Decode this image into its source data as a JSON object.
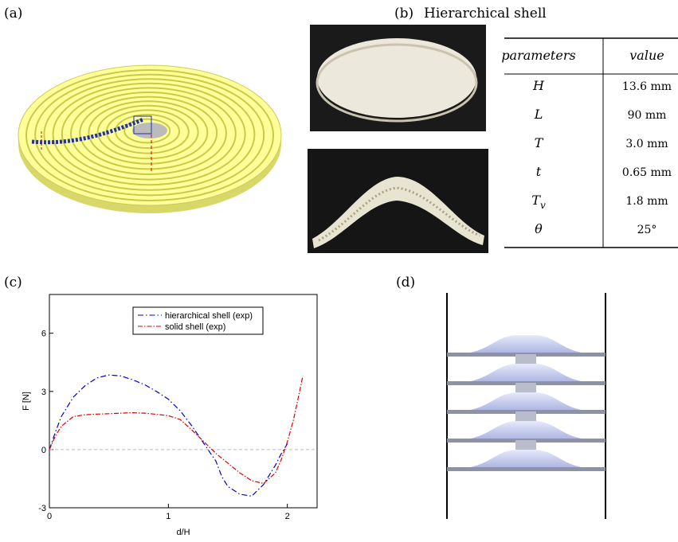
{
  "panels": {
    "a": "(a)",
    "b": "(b)",
    "b_title": "Hierarchical shell",
    "c": "(c)",
    "d": "(d)"
  },
  "table": {
    "header": [
      "parameters",
      "value"
    ],
    "rows": [
      {
        "param": "H",
        "value": "13.6 mm"
      },
      {
        "param": "L",
        "value": "90 mm"
      },
      {
        "param": "T",
        "value": "3.0 mm"
      },
      {
        "param": "t",
        "value": "0.65 mm"
      },
      {
        "param": "T",
        "sub": "v",
        "value": "1.8 mm"
      },
      {
        "param": "θ",
        "value": "25°"
      }
    ]
  },
  "chart_data": {
    "type": "line",
    "x_label": "d/H",
    "y_label": "F [N]",
    "xlim": [
      0,
      2.25
    ],
    "ylim": [
      -3,
      8
    ],
    "xticks": [
      0,
      1,
      2
    ],
    "yticks": [
      -3,
      0,
      3,
      6
    ],
    "legend": "top-center",
    "x": [
      0,
      0.05,
      0.1,
      0.2,
      0.3,
      0.4,
      0.5,
      0.6,
      0.7,
      0.8,
      0.9,
      1.0,
      1.1,
      1.2,
      1.3,
      1.4,
      1.45,
      1.5,
      1.6,
      1.7,
      1.8,
      1.9,
      1.95,
      2.0,
      2.05,
      2.1,
      2.13
    ],
    "series": [
      {
        "name": "hierarchical shell (exp)",
        "color": "#0000cc",
        "values": [
          0,
          0.9,
          1.7,
          2.7,
          3.3,
          3.7,
          3.85,
          3.8,
          3.6,
          3.35,
          3.0,
          2.6,
          2.0,
          1.2,
          0.3,
          -0.6,
          -1.4,
          -1.9,
          -2.3,
          -2.4,
          -1.8,
          -0.8,
          -0.2,
          0.3,
          null,
          null,
          null
        ]
      },
      {
        "name": "solid shell (exp)",
        "color": "#dd0000",
        "values": [
          0,
          0.7,
          1.2,
          1.7,
          1.8,
          1.83,
          1.85,
          1.88,
          1.9,
          1.88,
          1.82,
          1.75,
          1.55,
          1.0,
          0.4,
          -0.2,
          -0.45,
          -0.7,
          -1.2,
          -1.6,
          -1.75,
          -1.2,
          -0.5,
          0.4,
          1.5,
          2.9,
          3.8
        ]
      }
    ]
  }
}
